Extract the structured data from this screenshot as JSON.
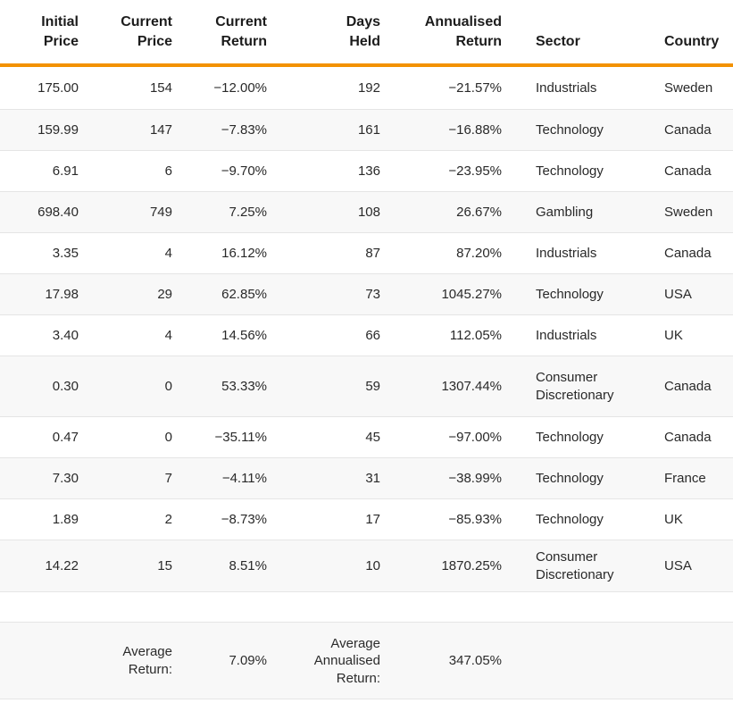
{
  "accent_color": "#F39201",
  "row_alt_color": "#f8f8f8",
  "divider_color": "#e5e5e5",
  "table": {
    "headers": [
      "Initial\nPrice",
      "Current\nPrice",
      "Current\nReturn",
      "Days\nHeld",
      "Annualised\nReturn",
      "Sector",
      "Country"
    ],
    "rows": [
      [
        "175.00",
        "154",
        "−12.00%",
        "192",
        "−21.57%",
        "Industrials",
        "Sweden"
      ],
      [
        "159.99",
        "147",
        "−7.83%",
        "161",
        "−16.88%",
        "Technology",
        "Canada"
      ],
      [
        "6.91",
        "6",
        "−9.70%",
        "136",
        "−23.95%",
        "Technology",
        "Canada"
      ],
      [
        "698.40",
        "749",
        "7.25%",
        "108",
        "26.67%",
        "Gambling",
        "Sweden"
      ],
      [
        "3.35",
        "4",
        "16.12%",
        "87",
        "87.20%",
        "Industrials",
        "Canada"
      ],
      [
        "17.98",
        "29",
        "62.85%",
        "73",
        "1045.27%",
        "Technology",
        "USA"
      ],
      [
        "3.40",
        "4",
        "14.56%",
        "66",
        "112.05%",
        "Industrials",
        "UK"
      ],
      [
        "0.30",
        "0",
        "53.33%",
        "59",
        "1307.44%",
        "Consumer Discretionary",
        "Canada"
      ],
      [
        "0.47",
        "0",
        "−35.11%",
        "45",
        "−97.00%",
        "Technology",
        "Canada"
      ],
      [
        "7.30",
        "7",
        "−4.11%",
        "31",
        "−38.99%",
        "Technology",
        "France"
      ],
      [
        "1.89",
        "2",
        "−8.73%",
        "17",
        "−85.93%",
        "Technology",
        "UK"
      ],
      [
        "14.22",
        "15",
        "8.51%",
        "10",
        "1870.25%",
        "Consumer Discretionary",
        "USA"
      ]
    ],
    "summary": {
      "average_return_label": "Average Return:",
      "average_return_value": "7.09%",
      "average_annualised_label": "Average Annualised Return:",
      "average_annualised_value": "347.05%"
    }
  },
  "chart_data": {
    "type": "table",
    "columns": [
      "Initial Price",
      "Current Price",
      "Current Return",
      "Days Held",
      "Annualised Return",
      "Sector",
      "Country"
    ],
    "rows": [
      [
        175.0,
        154,
        "-12.00%",
        192,
        "-21.57%",
        "Industrials",
        "Sweden"
      ],
      [
        159.99,
        147,
        "-7.83%",
        161,
        "-16.88%",
        "Technology",
        "Canada"
      ],
      [
        6.91,
        6,
        "-9.70%",
        136,
        "-23.95%",
        "Technology",
        "Canada"
      ],
      [
        698.4,
        749,
        "7.25%",
        108,
        "26.67%",
        "Gambling",
        "Sweden"
      ],
      [
        3.35,
        4,
        "16.12%",
        87,
        "87.20%",
        "Industrials",
        "Canada"
      ],
      [
        17.98,
        29,
        "62.85%",
        73,
        "1045.27%",
        "Technology",
        "USA"
      ],
      [
        3.4,
        4,
        "14.56%",
        66,
        "112.05%",
        "Industrials",
        "UK"
      ],
      [
        0.3,
        0,
        "53.33%",
        59,
        "1307.44%",
        "Consumer Discretionary",
        "Canada"
      ],
      [
        0.47,
        0,
        "-35.11%",
        45,
        "-97.00%",
        "Technology",
        "Canada"
      ],
      [
        7.3,
        7,
        "-4.11%",
        31,
        "-38.99%",
        "Technology",
        "France"
      ],
      [
        1.89,
        2,
        "-8.73%",
        17,
        "-85.93%",
        "Technology",
        "UK"
      ],
      [
        14.22,
        15,
        "8.51%",
        10,
        "1870.25%",
        "Consumer Discretionary",
        "USA"
      ]
    ],
    "summary": {
      "average_return": "7.09%",
      "average_annualised_return": "347.05%"
    },
    "title": "",
    "layout": "striped rows, orange rule under header, numeric columns right-aligned"
  }
}
